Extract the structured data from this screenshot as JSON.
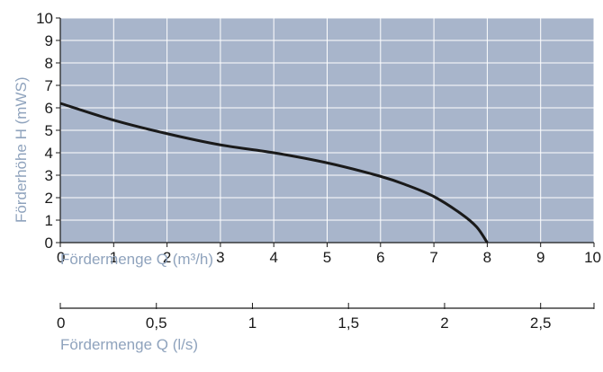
{
  "chart_data": {
    "type": "line",
    "title": "",
    "xlabel": "Fördermenge Q (m³/h)",
    "ylabel": "Förderhöhe H (mWS)",
    "xlim": [
      0,
      10
    ],
    "ylim": [
      0,
      10
    ],
    "x_ticks": [
      "0",
      "1",
      "2",
      "3",
      "4",
      "5",
      "6",
      "7",
      "8",
      "9",
      "10"
    ],
    "y_ticks": [
      "0",
      "1",
      "2",
      "3",
      "4",
      "5",
      "6",
      "7",
      "8",
      "9",
      "10"
    ],
    "grid": true,
    "plot_background": "#a8b5cb",
    "grid_color": "#ffffff",
    "line_color": "#1a1a1a",
    "series": [
      {
        "x": [
          0,
          1,
          2,
          3,
          4,
          5,
          6,
          6.5,
          7,
          7.5,
          7.8,
          8
        ],
        "y": [
          6.2,
          5.45,
          4.85,
          4.35,
          4.0,
          3.55,
          2.95,
          2.55,
          2.05,
          1.3,
          0.7,
          0
        ]
      }
    ],
    "secondary_axis": {
      "xlabel": "Fördermenge Q (l/s)",
      "ticks": [
        0,
        0.5,
        1,
        1.5,
        2,
        2.5
      ],
      "tick_labels": [
        "0",
        "0,5",
        "1",
        "1,5",
        "2",
        "2,5"
      ],
      "xlim": [
        0,
        2.7778
      ]
    }
  }
}
